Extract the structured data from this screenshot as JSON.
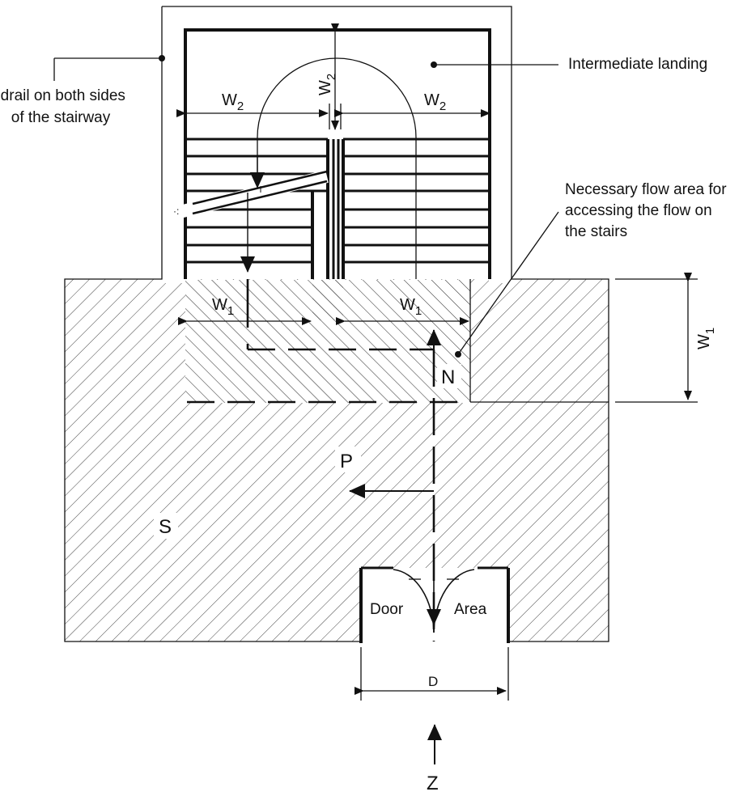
{
  "labels": {
    "handrail": [
      "Handrail on both sides",
      "of the stairway"
    ],
    "landing": "Intermediate landing",
    "flow_area": [
      "Necessary flow area for",
      "accessing the flow on",
      "the stairs"
    ],
    "w1": "W",
    "w1_sub": "1",
    "w2": "W",
    "w2_sub": "2",
    "n": "N",
    "p": "P",
    "s": "S",
    "door": "Door",
    "area": "Area",
    "d": "D",
    "z": "Z"
  }
}
